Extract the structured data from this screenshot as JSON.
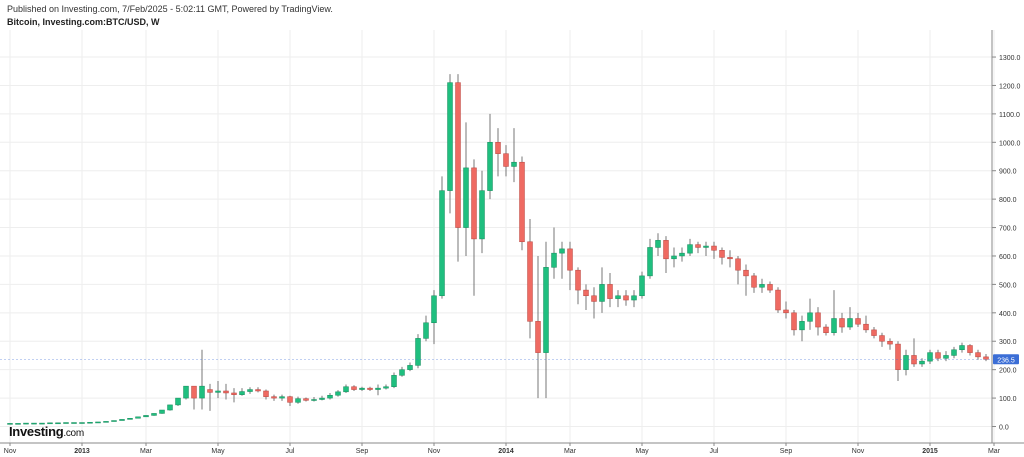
{
  "header": {
    "published": "Published on Investing.com, 7/Feb/2025 - 5:02:11 GMT, Powered by TradingView.",
    "symbol": "Bitcoin, Investing.com:BTC/USD, W"
  },
  "logo": {
    "name": "Investing",
    "domain": ".com"
  },
  "colors": {
    "up": "#26a69a",
    "up_fill": "#1fbf7f",
    "down": "#ef6a62",
    "grid": "#eeeeee",
    "axis": "#888888",
    "last_badge": "#3b6ed6"
  },
  "chart_data": {
    "type": "candlestick",
    "title": "Bitcoin, Investing.com:BTC/USD, W",
    "ylim": [
      -40,
      1340
    ],
    "y_ticks": [
      0,
      100,
      200,
      300,
      400,
      500,
      600,
      700,
      800,
      900,
      1000,
      1100,
      1200,
      1300
    ],
    "y_tick_labels": [
      "0.0",
      "100.0",
      "200.0",
      "300.0",
      "400.0",
      "500.0",
      "600.0",
      "700.0",
      "800.0",
      "900.0",
      "1000.0",
      "1100.0",
      "1200.0",
      "1300.0"
    ],
    "x_ticks": [
      {
        "label": "Nov",
        "week": 0
      },
      {
        "label": "2013",
        "week": 9
      },
      {
        "label": "Mar",
        "week": 17
      },
      {
        "label": "May",
        "week": 26
      },
      {
        "label": "Jul",
        "week": 35
      },
      {
        "label": "Sep",
        "week": 44
      },
      {
        "label": "Nov",
        "week": 53
      },
      {
        "label": "2014",
        "week": 62
      },
      {
        "label": "Mar",
        "week": 70
      },
      {
        "label": "May",
        "week": 79
      },
      {
        "label": "Jul",
        "week": 88
      },
      {
        "label": "Sep",
        "week": 97
      },
      {
        "label": "Nov",
        "week": 106
      },
      {
        "label": "2015",
        "week": 115
      },
      {
        "label": "Mar",
        "week": 123
      }
    ],
    "last_price": "236.5",
    "candles": [
      [
        10,
        11,
        10,
        11
      ],
      [
        11,
        11,
        11,
        11
      ],
      [
        11,
        12,
        11,
        12
      ],
      [
        12,
        12,
        11,
        12
      ],
      [
        12,
        12,
        12,
        12
      ],
      [
        12,
        13,
        12,
        13
      ],
      [
        13,
        13,
        12,
        13
      ],
      [
        13,
        14,
        13,
        14
      ],
      [
        14,
        14,
        13,
        14
      ],
      [
        14,
        14,
        13,
        14
      ],
      [
        14,
        15,
        14,
        15
      ],
      [
        15,
        16,
        15,
        16
      ],
      [
        16,
        18,
        16,
        18
      ],
      [
        18,
        21,
        18,
        21
      ],
      [
        21,
        25,
        21,
        25
      ],
      [
        25,
        29,
        25,
        29
      ],
      [
        29,
        34,
        29,
        34
      ],
      [
        34,
        39,
        34,
        39
      ],
      [
        39,
        46,
        38,
        46
      ],
      [
        46,
        58,
        45,
        58
      ],
      [
        58,
        76,
        56,
        76
      ],
      [
        76,
        100,
        72,
        100
      ],
      [
        100,
        142,
        95,
        142
      ],
      [
        142,
        100,
        60,
        140
      ],
      [
        100,
        142,
        60,
        270
      ],
      [
        130,
        120,
        55,
        150
      ],
      [
        120,
        125,
        100,
        160
      ],
      [
        125,
        118,
        95,
        150
      ],
      [
        118,
        112,
        85,
        135
      ],
      [
        112,
        123,
        108,
        135
      ],
      [
        123,
        130,
        115,
        138
      ],
      [
        130,
        125,
        120,
        138
      ],
      [
        125,
        105,
        95,
        130
      ],
      [
        105,
        100,
        90,
        112
      ],
      [
        100,
        105,
        90,
        112
      ],
      [
        105,
        85,
        72,
        108
      ],
      [
        85,
        98,
        80,
        105
      ],
      [
        98,
        92,
        88,
        102
      ],
      [
        92,
        95,
        88,
        104
      ],
      [
        95,
        100,
        92,
        108
      ],
      [
        100,
        110,
        95,
        118
      ],
      [
        110,
        122,
        105,
        128
      ],
      [
        122,
        140,
        118,
        148
      ],
      [
        140,
        130,
        125,
        145
      ],
      [
        130,
        135,
        125,
        140
      ],
      [
        135,
        130,
        125,
        140
      ],
      [
        130,
        135,
        110,
        148
      ],
      [
        135,
        140,
        130,
        148
      ],
      [
        140,
        180,
        135,
        190
      ],
      [
        180,
        200,
        175,
        210
      ],
      [
        200,
        215,
        195,
        225
      ],
      [
        215,
        310,
        205,
        325
      ],
      [
        310,
        365,
        300,
        390
      ],
      [
        365,
        460,
        290,
        480
      ],
      [
        460,
        830,
        450,
        880
      ],
      [
        830,
        1210,
        750,
        1240
      ],
      [
        1210,
        700,
        580,
        1240
      ],
      [
        700,
        910,
        600,
        1070
      ],
      [
        910,
        660,
        460,
        940
      ],
      [
        660,
        830,
        610,
        900
      ],
      [
        830,
        1000,
        800,
        1100
      ],
      [
        1000,
        960,
        880,
        1050
      ],
      [
        960,
        915,
        880,
        990
      ],
      [
        915,
        930,
        860,
        1050
      ],
      [
        930,
        650,
        620,
        950
      ],
      [
        650,
        370,
        310,
        730
      ],
      [
        370,
        260,
        100,
        600
      ],
      [
        260,
        560,
        100,
        650
      ],
      [
        560,
        610,
        520,
        700
      ],
      [
        610,
        625,
        520,
        650
      ],
      [
        625,
        550,
        480,
        650
      ],
      [
        550,
        480,
        430,
        560
      ],
      [
        480,
        460,
        410,
        500
      ],
      [
        460,
        440,
        380,
        490
      ],
      [
        440,
        500,
        400,
        560
      ],
      [
        500,
        450,
        420,
        540
      ],
      [
        450,
        460,
        420,
        480
      ],
      [
        460,
        445,
        425,
        480
      ],
      [
        445,
        460,
        420,
        480
      ],
      [
        460,
        530,
        450,
        545
      ],
      [
        530,
        630,
        520,
        660
      ],
      [
        630,
        655,
        600,
        680
      ],
      [
        655,
        590,
        540,
        670
      ],
      [
        590,
        600,
        560,
        630
      ],
      [
        600,
        610,
        580,
        630
      ],
      [
        610,
        640,
        600,
        660
      ],
      [
        640,
        630,
        610,
        650
      ],
      [
        630,
        635,
        600,
        650
      ],
      [
        635,
        620,
        590,
        650
      ],
      [
        620,
        595,
        570,
        630
      ],
      [
        595,
        590,
        560,
        620
      ],
      [
        590,
        550,
        500,
        600
      ],
      [
        550,
        530,
        460,
        570
      ],
      [
        530,
        490,
        470,
        540
      ],
      [
        490,
        500,
        470,
        520
      ],
      [
        500,
        480,
        470,
        510
      ],
      [
        480,
        410,
        400,
        490
      ],
      [
        410,
        400,
        380,
        440
      ],
      [
        400,
        340,
        320,
        410
      ],
      [
        340,
        370,
        300,
        390
      ],
      [
        370,
        400,
        340,
        450
      ],
      [
        400,
        350,
        320,
        420
      ],
      [
        350,
        330,
        320,
        360
      ],
      [
        330,
        380,
        320,
        480
      ],
      [
        380,
        350,
        330,
        400
      ],
      [
        350,
        380,
        340,
        420
      ],
      [
        380,
        360,
        350,
        400
      ],
      [
        360,
        340,
        330,
        390
      ],
      [
        340,
        320,
        310,
        350
      ],
      [
        320,
        300,
        280,
        330
      ],
      [
        300,
        290,
        270,
        310
      ],
      [
        290,
        200,
        160,
        300
      ],
      [
        200,
        250,
        180,
        270
      ],
      [
        250,
        220,
        210,
        310
      ],
      [
        220,
        230,
        210,
        240
      ],
      [
        230,
        260,
        220,
        270
      ],
      [
        260,
        240,
        230,
        270
      ],
      [
        240,
        250,
        230,
        265
      ],
      [
        250,
        270,
        240,
        280
      ],
      [
        270,
        285,
        260,
        295
      ],
      [
        285,
        260,
        250,
        290
      ],
      [
        260,
        245,
        235,
        270
      ],
      [
        245,
        236.5,
        230,
        255
      ]
    ]
  }
}
